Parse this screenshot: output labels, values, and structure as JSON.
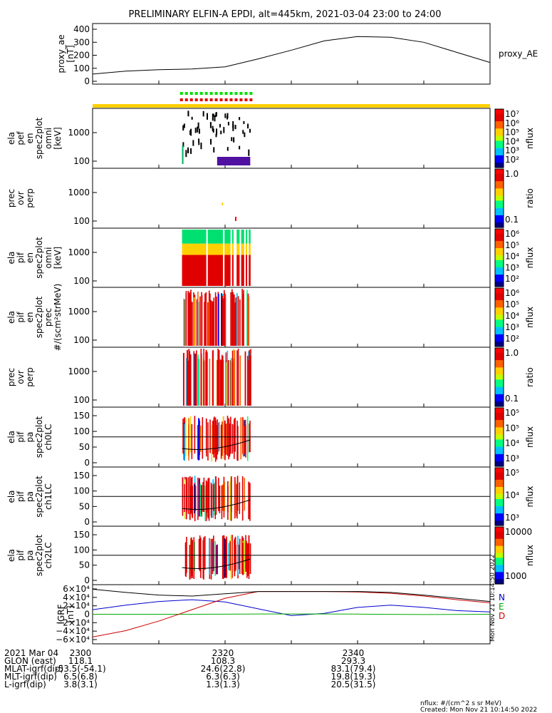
{
  "title": "PRELIMINARY ELFIN-A EPDI, alt=445km, 2021-03-04 23:00 to 24:00",
  "panels": [
    {
      "id": "proxy_ae",
      "ylabel": [
        "proxy_ae",
        "[nT]"
      ],
      "yticks": [
        "400",
        "300",
        "200",
        "100",
        "0"
      ],
      "series_label": "proxy_AE"
    },
    {
      "id": "pef_omni",
      "ylabel": [
        "ela",
        "pef",
        "en",
        "spec2plot",
        "omni",
        "[keV]"
      ],
      "yticks": [
        "1000",
        "100"
      ],
      "colorbar_label": "nflux",
      "colorbar_ticks": [
        "10⁷",
        "10⁶",
        "10⁵",
        "10⁴",
        "10³",
        "10²"
      ]
    },
    {
      "id": "pef_ratio",
      "ylabel": [
        "prec",
        "ovr",
        "perp"
      ],
      "yticks": [
        "1000",
        "100"
      ],
      "colorbar_label": "ratio",
      "colorbar_ticks": [
        "1.0",
        "0.1"
      ]
    },
    {
      "id": "pif_omni",
      "ylabel": [
        "ela",
        "pif",
        "en",
        "spec2plot",
        "omni",
        "[keV]"
      ],
      "yticks": [
        "1000",
        "100"
      ],
      "colorbar_label": "nflux",
      "colorbar_ticks": [
        "10⁶",
        "10⁵",
        "10⁴",
        "10³",
        "10²"
      ]
    },
    {
      "id": "pif_prec",
      "ylabel": [
        "ela",
        "pif",
        "en",
        "spec2plot",
        "prec",
        "#/(scm²strMeV)"
      ],
      "yticks": [
        "1000",
        "100"
      ],
      "colorbar_label": "nflux",
      "colorbar_ticks": [
        "10⁶",
        "10⁵",
        "10⁴",
        "10³",
        "10²"
      ]
    },
    {
      "id": "pif_ratio",
      "ylabel": [
        "prec",
        "ovr",
        "perp"
      ],
      "yticks": [
        "1000",
        "100"
      ],
      "colorbar_label": "ratio",
      "colorbar_ticks": [
        "1.0",
        "0.1"
      ]
    },
    {
      "id": "pa_ch0",
      "ylabel": [
        "ela",
        "pif",
        "pa",
        "spec2plot",
        "ch0LC"
      ],
      "yticks": [
        "150",
        "100",
        "50",
        "0"
      ],
      "colorbar_label": "nflux",
      "colorbar_ticks": [
        "10⁵",
        "10⁵",
        "10⁴",
        "10³"
      ]
    },
    {
      "id": "pa_ch1",
      "ylabel": [
        "ela",
        "pif",
        "pa",
        "spec2plot",
        "ch1LC"
      ],
      "yticks": [
        "150",
        "100",
        "50",
        "0"
      ],
      "colorbar_label": "nflux",
      "colorbar_ticks": [
        "10⁵",
        "10⁴",
        "10³"
      ]
    },
    {
      "id": "pa_ch2",
      "ylabel": [
        "ela",
        "pif",
        "pa",
        "spec2plot",
        "ch2LC"
      ],
      "yticks": [
        "150",
        "100",
        "50",
        "0"
      ],
      "colorbar_label": "nflux",
      "colorbar_ticks": [
        "10000",
        "1000"
      ]
    },
    {
      "id": "igrf",
      "ylabel": [
        "IGRF",
        "[nT]"
      ],
      "yticks": [
        "6×10⁴",
        "4×10⁴",
        "2×10⁴",
        "0",
        "−2×10⁴",
        "−4×10⁴",
        "−6×10⁴"
      ],
      "legend": [
        "N",
        "E",
        "D"
      ],
      "legend_colors": [
        "#0000cc",
        "#00aa00",
        "#cc0000"
      ]
    }
  ],
  "orbit_rows": [
    {
      "label": "2021 Mar 04",
      "values": [
        "2300",
        "2320",
        "2340"
      ]
    },
    {
      "label": "GLON (east)",
      "values": [
        "118.1",
        "108.3",
        "293.3"
      ]
    },
    {
      "label": "MLAT-igrf(dip)",
      "values": [
        "-53.5(-54.1)",
        "24.6(22.8)",
        "83.1(79.4)"
      ]
    },
    {
      "label": "MLT-igrf(dip)",
      "values": [
        "6.5(6.8)",
        "6.3(6.3)",
        "19.8(19.3)"
      ]
    },
    {
      "label": "L-igrf(dip)",
      "values": [
        "3.8(3.1)",
        "1.3(1.3)",
        "20.5(31.5)"
      ]
    }
  ],
  "footer": {
    "units": "nflux: #/(cm^2 s sr MeV)",
    "created": "Created: Mon Nov 21 10:14:50 2022",
    "side_stamp": "Mon Nov 21 10:14:50 2022"
  },
  "chart_data": [
    {
      "type": "line",
      "name": "proxy_ae",
      "x": [
        0,
        5,
        10,
        15,
        20,
        25,
        30,
        35,
        40,
        45,
        50,
        55,
        60
      ],
      "y": [
        70,
        90,
        100,
        105,
        120,
        175,
        235,
        300,
        330,
        325,
        290,
        220,
        150
      ],
      "ylim": [
        0,
        420
      ]
    },
    {
      "type": "line",
      "name": "igrf",
      "x": [
        0,
        5,
        10,
        15,
        20,
        25,
        30,
        35,
        40,
        45,
        50,
        55,
        60
      ],
      "series": [
        {
          "name": "N",
          "color": "#0000cc",
          "y": [
            10000,
            20000,
            28000,
            32000,
            27000,
            12000,
            -3000,
            2000,
            15000,
            20000,
            15000,
            8000,
            5000
          ]
        },
        {
          "name": "E",
          "color": "#00aa00",
          "y": [
            0,
            0,
            0,
            0,
            200,
            500,
            600,
            500,
            300,
            -200,
            -500,
            -300,
            0
          ]
        },
        {
          "name": "D",
          "color": "#cc0000",
          "y": [
            -50000,
            -36000,
            -15000,
            10000,
            35000,
            50000,
            50000,
            50000,
            49000,
            46000,
            40000,
            32000,
            25000
          ]
        },
        {
          "name": "total",
          "color": "#000000",
          "y": [
            55000,
            48000,
            42000,
            40000,
            45000,
            50000,
            50000,
            50000,
            50000,
            48000,
            42000,
            35000,
            28000
          ]
        }
      ],
      "ylim": [
        -65000,
        65000
      ]
    }
  ]
}
